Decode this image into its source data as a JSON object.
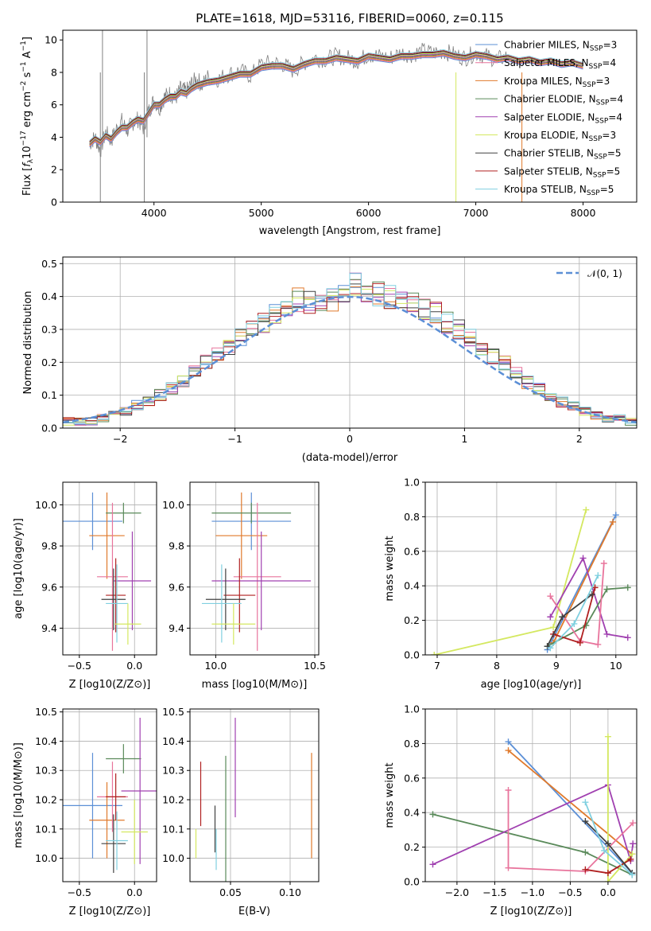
{
  "chart_data": [
    {
      "id": "spectrum",
      "type": "line",
      "title": "PLATE=1618, MJD=53116, FIBERID=0060, z=0.115",
      "xlabel": "wavelength [Angstrom, rest frame]",
      "ylabel": "Flux [f_λ10^-17 erg cm^-2 s^-1 A^-1]",
      "xlim": [
        3150,
        8500
      ],
      "ylim": [
        0,
        10.6
      ],
      "xticks": [
        4000,
        5000,
        6000,
        7000,
        8000
      ],
      "yticks": [
        0,
        2,
        4,
        6,
        8,
        10
      ],
      "grid": false,
      "legend_position": "right",
      "observed": {
        "color": "#808080",
        "x": [
          3400,
          3450,
          3500,
          3550,
          3600,
          3650,
          3700,
          3750,
          3800,
          3850,
          3900,
          3950,
          4000,
          4050,
          4100,
          4150,
          4200,
          4250,
          4300,
          4350,
          4400,
          4450,
          4500,
          4600,
          4700,
          4800,
          4900,
          5000,
          5100,
          5200,
          5300,
          5400,
          5500,
          5600,
          5700,
          5800,
          5900,
          6000,
          6100,
          6200,
          6300,
          6400,
          6500,
          6600,
          6700,
          6800,
          6900,
          7000,
          7100,
          7200,
          7300
        ],
        "y": [
          3.6,
          4.0,
          3.2,
          4.3,
          3.8,
          4.5,
          5.0,
          4.4,
          4.9,
          5.1,
          4.6,
          5.6,
          6.3,
          5.8,
          6.5,
          6.7,
          6.4,
          7.0,
          6.8,
          7.3,
          7.6,
          7.2,
          7.7,
          7.6,
          7.9,
          8.1,
          7.8,
          8.5,
          8.6,
          8.5,
          8.1,
          8.6,
          8.9,
          8.8,
          9.0,
          8.9,
          8.7,
          9.1,
          9.0,
          8.9,
          9.2,
          9.1,
          9.3,
          9.2,
          9.3,
          9.1,
          8.9,
          9.2,
          9.0,
          8.8,
          9.0
        ]
      },
      "model_x": [
        3400,
        3450,
        3500,
        3550,
        3600,
        3650,
        3700,
        3750,
        3800,
        3850,
        3900,
        3950,
        4000,
        4050,
        4100,
        4150,
        4200,
        4250,
        4300,
        4350,
        4400,
        4500,
        4600,
        4700,
        4800,
        4900,
        5000,
        5100,
        5200,
        5300,
        5400,
        5500,
        5600,
        5700,
        5800,
        5900,
        6000,
        6100,
        6200,
        6300,
        6400,
        6500,
        6600,
        6700,
        6800,
        6900,
        7000,
        7100,
        7200,
        7300,
        7400,
        7500,
        7600,
        7700,
        7800,
        7900,
        8000
      ],
      "model_y": [
        3.6,
        3.9,
        3.7,
        4.1,
        3.9,
        4.3,
        4.6,
        4.6,
        4.9,
        5.1,
        5.0,
        5.5,
        6.0,
        6.0,
        6.3,
        6.5,
        6.5,
        6.8,
        6.7,
        7.0,
        7.2,
        7.4,
        7.5,
        7.7,
        7.9,
        7.9,
        8.3,
        8.4,
        8.4,
        8.2,
        8.5,
        8.7,
        8.7,
        8.9,
        8.8,
        8.7,
        9.0,
        8.9,
        8.8,
        9.0,
        9.0,
        9.1,
        9.1,
        9.2,
        9.0,
        8.9,
        9.1,
        9.0,
        8.8,
        8.9,
        8.7,
        8.8,
        8.6,
        8.7,
        8.5,
        8.6,
        8.4
      ],
      "series": [
        {
          "name": "Chabrier MILES, N_SSP=3",
          "label_main": "Chabrier MILES, N",
          "label_sub": "SSP",
          "label_tail": "=3",
          "color": "#5b8fd6"
        },
        {
          "name": "Salpeter MILES, N_SSP=4",
          "label_main": "Salpeter MILES, N",
          "label_sub": "SSP",
          "label_tail": "=4",
          "color": "#e8749c"
        },
        {
          "name": "Kroupa MILES, N_SSP=3",
          "label_main": "Kroupa MILES, N",
          "label_sub": "SSP",
          "label_tail": "=3",
          "color": "#e07a2c"
        },
        {
          "name": "Chabrier ELODIE, N_SSP=4",
          "label_main": "Chabrier ELODIE, N",
          "label_sub": "SSP",
          "label_tail": "=4",
          "color": "#5a8a5a"
        },
        {
          "name": "Salpeter ELODIE, N_SSP=4",
          "label_main": "Salpeter ELODIE, N",
          "label_sub": "SSP",
          "label_tail": "=4",
          "color": "#a040b0"
        },
        {
          "name": "Kroupa ELODIE, N_SSP=3",
          "label_main": "Kroupa ELODIE, N",
          "label_sub": "SSP",
          "label_tail": "=3",
          "color": "#d4e860"
        },
        {
          "name": "Chabrier STELIB, N_SSP=5",
          "label_main": "Chabrier STELIB, N",
          "label_sub": "SSP",
          "label_tail": "=5",
          "color": "#404040"
        },
        {
          "name": "Salpeter STELIB, N_SSP=5",
          "label_main": "Salpeter STELIB, N",
          "label_sub": "SSP",
          "label_tail": "=5",
          "color": "#b02020"
        },
        {
          "name": "Kroupa STELIB, N_SSP=5",
          "label_main": "Kroupa STELIB, N",
          "label_sub": "SSP",
          "label_tail": "=5",
          "color": "#80d0e0"
        }
      ]
    },
    {
      "id": "residuals",
      "type": "histogram",
      "xlabel": "(data-model)/error",
      "ylabel": "Normed distribution",
      "xlim": [
        -2.5,
        2.5
      ],
      "ylim": [
        0,
        0.52
      ],
      "xticks": [
        -2,
        -1,
        0,
        1,
        2
      ],
      "yticks": [
        0.0,
        0.1,
        0.2,
        0.3,
        0.4,
        0.5
      ],
      "grid": true,
      "legend": "N(0, 1)",
      "legend_position": "top-right",
      "bin_width": 0.1,
      "bin_start": -2.5,
      "values": [
        0.02,
        0.02,
        0.02,
        0.03,
        0.04,
        0.05,
        0.07,
        0.08,
        0.1,
        0.12,
        0.14,
        0.17,
        0.2,
        0.22,
        0.25,
        0.28,
        0.3,
        0.32,
        0.35,
        0.37,
        0.39,
        0.38,
        0.37,
        0.39,
        0.41,
        0.44,
        0.4,
        0.41,
        0.4,
        0.39,
        0.38,
        0.36,
        0.35,
        0.32,
        0.3,
        0.28,
        0.25,
        0.22,
        0.2,
        0.17,
        0.14,
        0.12,
        0.1,
        0.08,
        0.07,
        0.05,
        0.04,
        0.03,
        0.03,
        0.02
      ]
    },
    {
      "id": "age-vs-Z",
      "type": "scatter",
      "xlabel": "Z [log10(Z/Z⊙)]",
      "ylabel": "age  [log10(age/yr)]",
      "xlim": [
        -0.65,
        0.2
      ],
      "ylim": [
        9.27,
        10.11
      ],
      "xticks": [
        -0.5,
        0.0
      ],
      "yticks": [
        9.4,
        9.6,
        9.8,
        10.0
      ],
      "grid": true,
      "points": [
        {
          "x": -0.38,
          "y": 9.92,
          "xerr": 0.27,
          "yerr": 0.14,
          "c": 0
        },
        {
          "x": -0.25,
          "y": 9.85,
          "xerr": 0.16,
          "yerr": 0.21,
          "c": 2
        },
        {
          "x": -0.1,
          "y": 9.96,
          "xerr": 0.16,
          "yerr": 0.05,
          "c": 3
        },
        {
          "x": -0.2,
          "y": 9.65,
          "xerr": 0.14,
          "yerr": 0.36,
          "c": 1
        },
        {
          "x": -0.02,
          "y": 9.63,
          "xerr": 0.17,
          "yerr": 0.24,
          "c": 4
        },
        {
          "x": -0.17,
          "y": 9.56,
          "xerr": 0.09,
          "yerr": 0.18,
          "c": 7
        },
        {
          "x": -0.19,
          "y": 9.54,
          "xerr": 0.11,
          "yerr": 0.15,
          "c": 6
        },
        {
          "x": -0.16,
          "y": 9.52,
          "xerr": 0.1,
          "yerr": 0.19,
          "c": 8
        },
        {
          "x": -0.06,
          "y": 9.42,
          "xerr": 0.12,
          "yerr": 0.1,
          "c": 5
        }
      ]
    },
    {
      "id": "age-vs-mass",
      "type": "scatter",
      "xlabel": "mass [log10(M/M⊙)]",
      "ylabel": "",
      "xlim": [
        9.87,
        10.52
      ],
      "ylim": [
        9.27,
        10.11
      ],
      "xticks": [
        10.0,
        10.5
      ],
      "yticks": [
        9.4,
        9.6,
        9.8,
        10.0
      ],
      "grid": true,
      "points": [
        {
          "x": 10.18,
          "y": 9.92,
          "xerr": 0.2,
          "yerr": 0.14,
          "c": 0
        },
        {
          "x": 10.13,
          "y": 9.85,
          "xerr": 0.13,
          "yerr": 0.21,
          "c": 2
        },
        {
          "x": 10.18,
          "y": 9.96,
          "xerr": 0.2,
          "yerr": 0.05,
          "c": 3
        },
        {
          "x": 10.21,
          "y": 9.65,
          "xerr": 0.12,
          "yerr": 0.36,
          "c": 1
        },
        {
          "x": 10.23,
          "y": 9.63,
          "xerr": 0.25,
          "yerr": 0.24,
          "c": 4
        },
        {
          "x": 10.12,
          "y": 9.56,
          "xerr": 0.08,
          "yerr": 0.18,
          "c": 7
        },
        {
          "x": 10.05,
          "y": 9.54,
          "xerr": 0.1,
          "yerr": 0.15,
          "c": 6
        },
        {
          "x": 10.03,
          "y": 9.52,
          "xerr": 0.1,
          "yerr": 0.19,
          "c": 8
        },
        {
          "x": 10.09,
          "y": 9.42,
          "xerr": 0.11,
          "yerr": 0.1,
          "c": 5
        }
      ]
    },
    {
      "id": "weight-vs-age",
      "type": "line",
      "xlabel": "age  [log10(age/yr)]",
      "ylabel": "mass weight",
      "xlim": [
        6.8,
        10.35
      ],
      "ylim": [
        0,
        1.0
      ],
      "xticks": [
        7,
        8,
        9,
        10
      ],
      "yticks": [
        0.0,
        0.2,
        0.4,
        0.6,
        0.8,
        1.0
      ],
      "grid": true,
      "series": [
        {
          "c": 0,
          "x": [
            8.85,
            10.0
          ],
          "y": [
            0.03,
            0.81
          ]
        },
        {
          "c": 2,
          "x": [
            8.95,
            9.95
          ],
          "y": [
            0.07,
            0.77
          ]
        },
        {
          "c": 5,
          "x": [
            6.95,
            8.95,
            9.5
          ],
          "y": [
            0.0,
            0.16,
            0.84
          ]
        },
        {
          "c": 4,
          "x": [
            8.9,
            9.45,
            9.85,
            10.2
          ],
          "y": [
            0.22,
            0.56,
            0.12,
            0.1
          ]
        },
        {
          "c": 3,
          "x": [
            8.85,
            9.5,
            9.85,
            10.2
          ],
          "y": [
            0.05,
            0.17,
            0.38,
            0.39
          ]
        },
        {
          "c": 1,
          "x": [
            8.9,
            9.4,
            9.7,
            9.8
          ],
          "y": [
            0.34,
            0.08,
            0.06,
            0.53
          ]
        },
        {
          "c": 7,
          "x": [
            8.95,
            9.4,
            9.65
          ],
          "y": [
            0.12,
            0.07,
            0.39
          ]
        },
        {
          "c": 6,
          "x": [
            8.85,
            9.1,
            9.6
          ],
          "y": [
            0.05,
            0.22,
            0.35
          ]
        },
        {
          "c": 8,
          "x": [
            8.9,
            9.3,
            9.7
          ],
          "y": [
            0.04,
            0.18,
            0.46
          ]
        }
      ]
    },
    {
      "id": "mass-vs-Z",
      "type": "scatter",
      "xlabel": "Z [log10(Z/Z⊙)]",
      "ylabel": "mass [log10(M/M⊙)]",
      "xlim": [
        -0.65,
        0.2
      ],
      "ylim": [
        9.92,
        10.51
      ],
      "xticks": [
        -0.5,
        0.0
      ],
      "yticks": [
        10.0,
        10.1,
        10.2,
        10.3,
        10.4,
        10.5
      ],
      "grid": true,
      "points": [
        {
          "x": -0.38,
          "y": 10.18,
          "xerr": 0.27,
          "yerr": 0.18,
          "c": 0
        },
        {
          "x": -0.25,
          "y": 10.13,
          "xerr": 0.16,
          "yerr": 0.13,
          "c": 2
        },
        {
          "x": -0.1,
          "y": 10.34,
          "xerr": 0.16,
          "yerr": 0.05,
          "c": 3
        },
        {
          "x": -0.2,
          "y": 10.21,
          "xerr": 0.14,
          "yerr": 0.12,
          "c": 1
        },
        {
          "x": 0.05,
          "y": 10.23,
          "xerr": 0.17,
          "yerr": 0.25,
          "c": 4
        },
        {
          "x": -0.17,
          "y": 10.21,
          "xerr": 0.09,
          "yerr": 0.08,
          "c": 7
        },
        {
          "x": -0.19,
          "y": 10.05,
          "xerr": 0.11,
          "yerr": 0.1,
          "c": 6
        },
        {
          "x": -0.16,
          "y": 10.06,
          "xerr": 0.1,
          "yerr": 0.1,
          "c": 8
        },
        {
          "x": 0.0,
          "y": 10.09,
          "xerr": 0.12,
          "yerr": 0.11,
          "c": 5
        }
      ]
    },
    {
      "id": "mass-vs-EBV",
      "type": "scatter",
      "xlabel": "E(B-V)",
      "ylabel": "",
      "xlim": [
        0.016,
        0.124
      ],
      "ylim": [
        9.92,
        10.51
      ],
      "xticks": [
        0.05,
        0.1
      ],
      "yticks": [
        10.0,
        10.1,
        10.2,
        10.3,
        10.4,
        10.5
      ],
      "grid": true,
      "points": [
        {
          "x": 0.025,
          "y": 10.22,
          "xerr": 0,
          "yerr": 0.11,
          "c": 7
        },
        {
          "x": 0.037,
          "y": 10.1,
          "xerr": 0,
          "yerr": 0.08,
          "c": 6
        },
        {
          "x": 0.046,
          "y": 10.13,
          "xerr": 0,
          "yerr": 0.22,
          "c": 3
        },
        {
          "x": 0.054,
          "y": 10.31,
          "xerr": 0,
          "yerr": 0.17,
          "c": 4
        },
        {
          "x": 0.118,
          "y": 10.18,
          "xerr": 0,
          "yerr": 0.18,
          "c": 2
        },
        {
          "x": 0.021,
          "y": 10.05,
          "xerr": 0,
          "yerr": 0.05,
          "c": 5
        },
        {
          "x": 0.038,
          "y": 10.03,
          "xerr": 0,
          "yerr": 0.07,
          "c": 8
        }
      ]
    },
    {
      "id": "weight-vs-Z",
      "type": "line",
      "xlabel": "Z [log10(Z/Z⊙)]",
      "ylabel": "mass weight",
      "xlim": [
        -2.42,
        0.38
      ],
      "ylim": [
        0,
        1.0
      ],
      "xticks": [
        -2.0,
        -1.5,
        -1.0,
        -0.5,
        0.0
      ],
      "yticks": [
        0.0,
        0.2,
        0.4,
        0.6,
        0.8,
        1.0
      ],
      "grid": true,
      "series": [
        {
          "c": 0,
          "x": [
            -1.32,
            0.32
          ],
          "y": [
            0.81,
            0.05
          ]
        },
        {
          "c": 2,
          "x": [
            -1.32,
            0.32
          ],
          "y": [
            0.76,
            0.16
          ]
        },
        {
          "c": 3,
          "x": [
            -2.32,
            -0.3,
            0.32
          ],
          "y": [
            0.39,
            0.17,
            0.04
          ]
        },
        {
          "c": 4,
          "x": [
            -2.32,
            0.0,
            0.3,
            0.33
          ],
          "y": [
            0.1,
            0.56,
            0.12,
            0.22
          ]
        },
        {
          "c": 1,
          "x": [
            -1.32,
            -1.32,
            -0.3,
            0.33
          ],
          "y": [
            0.53,
            0.08,
            0.06,
            0.34
          ]
        },
        {
          "c": 5,
          "x": [
            0.0,
            0.0,
            0.32
          ],
          "y": [
            0.84,
            0.0,
            0.16
          ]
        },
        {
          "c": 7,
          "x": [
            -0.3,
            0.0,
            0.3
          ],
          "y": [
            0.07,
            0.05,
            0.13
          ]
        },
        {
          "c": 6,
          "x": [
            -0.3,
            0.0,
            0.32
          ],
          "y": [
            0.35,
            0.22,
            0.05
          ]
        },
        {
          "c": 8,
          "x": [
            -0.3,
            -0.05,
            0.32
          ],
          "y": [
            0.46,
            0.18,
            0.04
          ]
        }
      ]
    }
  ]
}
